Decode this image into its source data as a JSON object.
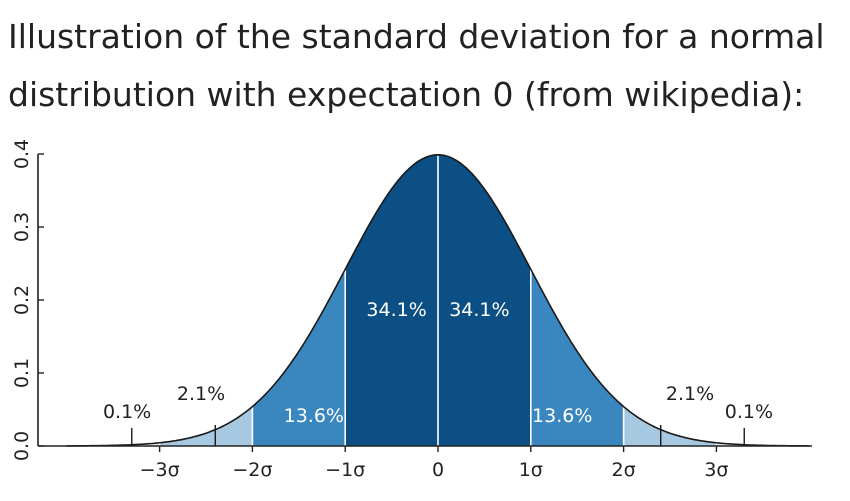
{
  "caption": {
    "line1": "Illustration of the standard deviation for a normal",
    "line2": "distribution with expectation 0 (from wikipedia):"
  },
  "chart_data": {
    "type": "area",
    "title": "",
    "xlabel": "",
    "ylabel": "",
    "xlim": [
      -4,
      4
    ],
    "ylim": [
      0,
      0.4
    ],
    "y_ticks": [
      "0.0",
      "0.1",
      "0.2",
      "0.3",
      "0.4"
    ],
    "x_ticks": [
      {
        "value": -3,
        "label": "−3σ"
      },
      {
        "value": -2,
        "label": "−2σ"
      },
      {
        "value": -1,
        "label": "−1σ"
      },
      {
        "value": 0,
        "label": "0"
      },
      {
        "value": 1,
        "label": "1σ"
      },
      {
        "value": 2,
        "label": "2σ"
      },
      {
        "value": 3,
        "label": "3σ"
      }
    ],
    "curve": "standard normal density, mean 0, sd 1",
    "bands": [
      {
        "from": -3,
        "to": -2,
        "label": "2.1%",
        "color": "#a6c8e0"
      },
      {
        "from": -2,
        "to": -1,
        "label": "13.6%",
        "color": "#3a86bf"
      },
      {
        "from": -1,
        "to": 0,
        "label": "34.1%",
        "color": "#0b4f84"
      },
      {
        "from": 0,
        "to": 1,
        "label": "34.1%",
        "color": "#0b4f84"
      },
      {
        "from": 1,
        "to": 2,
        "label": "13.6%",
        "color": "#3a86bf"
      },
      {
        "from": 2,
        "to": 3,
        "label": "2.1%",
        "color": "#a6c8e0"
      },
      {
        "from": -4,
        "to": -3,
        "label": "0.1%",
        "color": "#dce9f3"
      },
      {
        "from": 3,
        "to": 4,
        "label": "0.1%",
        "color": "#dce9f3"
      }
    ],
    "grid": false,
    "legend": "none"
  }
}
